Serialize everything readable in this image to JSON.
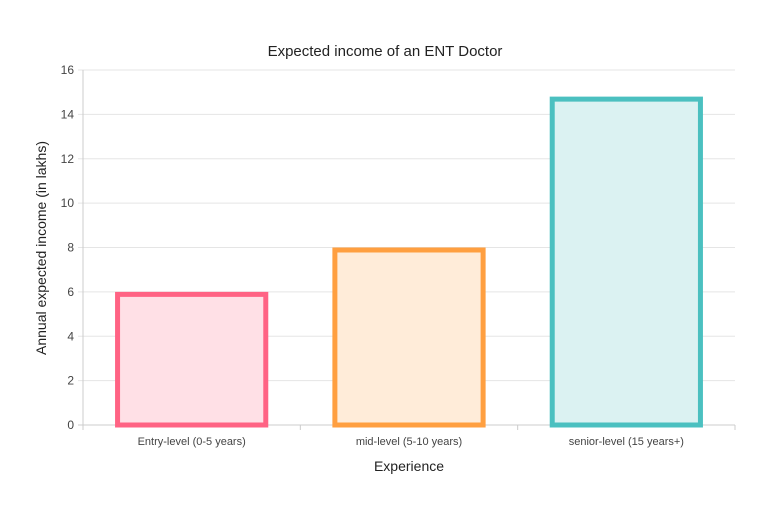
{
  "chart_data": {
    "type": "bar",
    "title": "Expected income of an ENT Doctor",
    "xlabel": "Experience",
    "ylabel": "Annual expected income (in lakhs)",
    "categories": [
      "Entry-level (0-5 years)",
      "mid-level (5-10 years)",
      "senior-level (15 years+)"
    ],
    "values": [
      6,
      8,
      14.8
    ],
    "ylim": [
      0,
      16
    ],
    "yticks": [
      "0",
      "2",
      "4",
      "6",
      "8",
      "10",
      "12",
      "14",
      "16"
    ],
    "grid": true,
    "legend": "none",
    "border_colors": [
      "#ff6384",
      "#ff9f40",
      "#4bc0c0"
    ],
    "fill_colors": [
      "#ffe0e6",
      "#ffecd9",
      "#dbf2f2"
    ]
  }
}
